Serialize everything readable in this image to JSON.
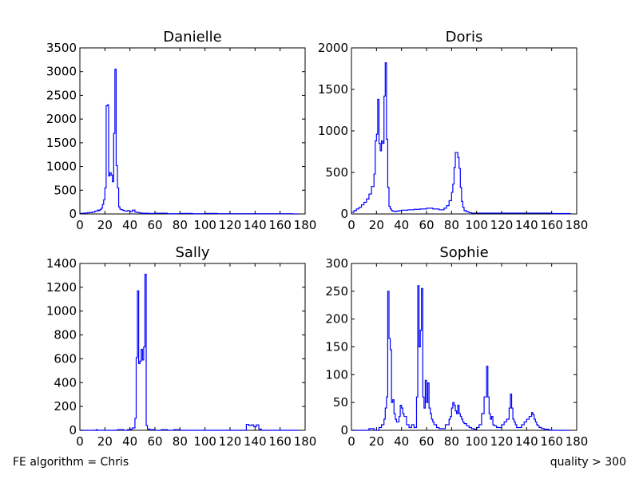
{
  "footer": {
    "left": "FE algorithm = Chris",
    "right": "quality > 300"
  },
  "chart_data": [
    {
      "type": "line",
      "title": "Danielle",
      "xlim": [
        0,
        180
      ],
      "ylim": [
        0,
        3500
      ],
      "xticks": [
        0,
        20,
        40,
        60,
        80,
        100,
        120,
        140,
        160,
        180
      ],
      "yticks": [
        0,
        500,
        1000,
        1500,
        2000,
        2500,
        3000,
        3500
      ],
      "step": true,
      "color": "#0000ff",
      "series": [
        {
          "x": [
            0,
            2,
            4,
            6,
            8,
            10,
            12,
            14,
            15,
            16,
            17,
            18,
            19,
            20,
            21,
            22,
            23,
            24,
            25,
            26,
            27,
            28,
            29,
            30,
            31,
            32,
            33,
            34,
            35,
            36,
            38,
            40,
            42,
            44,
            46,
            48,
            50,
            55,
            60,
            70,
            80,
            90,
            100,
            110,
            120,
            130,
            140,
            150,
            160,
            170,
            175
          ],
          "y": [
            10,
            15,
            20,
            25,
            30,
            40,
            60,
            80,
            70,
            90,
            120,
            200,
            300,
            550,
            2280,
            2300,
            800,
            870,
            820,
            680,
            1700,
            3050,
            1020,
            550,
            150,
            100,
            90,
            80,
            70,
            60,
            70,
            50,
            80,
            40,
            30,
            20,
            15,
            10,
            15,
            5,
            10,
            5,
            10,
            5,
            5,
            5,
            5,
            5,
            5,
            0,
            0
          ]
        }
      ]
    },
    {
      "type": "line",
      "title": "Doris",
      "xlim": [
        0,
        180
      ],
      "ylim": [
        0,
        2000
      ],
      "xticks": [
        0,
        20,
        40,
        60,
        80,
        100,
        120,
        140,
        160,
        180
      ],
      "yticks": [
        0,
        500,
        1000,
        1500,
        2000
      ],
      "step": true,
      "color": "#0000ff",
      "series": [
        {
          "x": [
            0,
            2,
            4,
            6,
            8,
            10,
            12,
            14,
            16,
            18,
            19,
            20,
            21,
            22,
            23,
            24,
            25,
            26,
            27,
            28,
            29,
            30,
            31,
            32,
            33,
            34,
            36,
            38,
            40,
            45,
            50,
            55,
            60,
            65,
            70,
            74,
            76,
            78,
            80,
            81,
            82,
            83,
            84,
            85,
            86,
            87,
            88,
            89,
            90,
            92,
            94,
            96,
            100,
            110,
            120,
            130,
            140,
            150,
            160,
            170,
            175
          ],
          "y": [
            20,
            40,
            60,
            80,
            110,
            140,
            180,
            240,
            330,
            480,
            880,
            960,
            1380,
            850,
            760,
            880,
            850,
            1420,
            1820,
            900,
            320,
            90,
            60,
            40,
            35,
            30,
            35,
            40,
            45,
            50,
            55,
            60,
            70,
            60,
            50,
            70,
            100,
            160,
            260,
            360,
            560,
            740,
            740,
            680,
            550,
            320,
            150,
            80,
            40,
            25,
            15,
            10,
            10,
            10,
            10,
            10,
            10,
            10,
            5,
            5,
            0
          ]
        }
      ]
    },
    {
      "type": "line",
      "title": "Sally",
      "xlim": [
        0,
        180
      ],
      "ylim": [
        0,
        1400
      ],
      "xticks": [
        0,
        20,
        40,
        60,
        80,
        100,
        120,
        140,
        160,
        180
      ],
      "yticks": [
        0,
        200,
        400,
        600,
        800,
        1000,
        1200,
        1400
      ],
      "step": true,
      "color": "#0000ff",
      "series": [
        {
          "x": [
            0,
            10,
            13,
            14,
            20,
            30,
            35,
            38,
            40,
            42,
            44,
            45,
            46,
            47,
            48,
            49,
            50,
            51,
            52,
            53,
            54,
            56,
            60,
            65,
            70,
            75,
            80,
            100,
            120,
            130,
            133,
            135,
            137,
            139,
            141,
            143,
            145,
            150,
            170,
            175
          ],
          "y": [
            0,
            0,
            5,
            0,
            0,
            5,
            0,
            5,
            10,
            20,
            100,
            610,
            1170,
            560,
            580,
            680,
            590,
            700,
            1310,
            40,
            10,
            5,
            0,
            5,
            0,
            5,
            0,
            0,
            0,
            0,
            50,
            40,
            45,
            30,
            45,
            10,
            0,
            0,
            0,
            0
          ]
        }
      ]
    },
    {
      "type": "line",
      "title": "Sophie",
      "xlim": [
        0,
        180
      ],
      "ylim": [
        0,
        300
      ],
      "xticks": [
        0,
        20,
        40,
        60,
        80,
        100,
        120,
        140,
        160,
        180
      ],
      "yticks": [
        0,
        50,
        100,
        150,
        200,
        250,
        300
      ],
      "step": true,
      "color": "#0000ff",
      "series": [
        {
          "x": [
            0,
            10,
            14,
            18,
            22,
            24,
            26,
            27,
            28,
            29,
            30,
            31,
            32,
            33,
            34,
            35,
            36,
            38,
            39,
            40,
            41,
            42,
            44,
            46,
            48,
            50,
            52,
            53,
            54,
            55,
            56,
            57,
            58,
            59,
            60,
            61,
            62,
            63,
            64,
            65,
            66,
            68,
            70,
            75,
            78,
            79,
            80,
            81,
            82,
            83,
            84,
            85,
            86,
            87,
            88,
            89,
            90,
            92,
            94,
            96,
            98,
            100,
            102,
            104,
            106,
            107,
            108,
            109,
            110,
            111,
            112,
            113,
            114,
            116,
            118,
            120,
            122,
            124,
            126,
            127,
            128,
            129,
            130,
            131,
            132,
            134,
            136,
            138,
            140,
            142,
            144,
            145,
            146,
            147,
            148,
            149,
            150,
            152,
            154,
            158,
            160,
            170,
            175
          ],
          "y": [
            0,
            0,
            3,
            0,
            5,
            10,
            20,
            40,
            60,
            250,
            165,
            145,
            50,
            55,
            30,
            20,
            15,
            25,
            45,
            40,
            30,
            25,
            10,
            5,
            10,
            5,
            60,
            260,
            150,
            180,
            255,
            60,
            40,
            90,
            50,
            85,
            40,
            30,
            20,
            15,
            10,
            5,
            3,
            10,
            20,
            25,
            40,
            50,
            45,
            35,
            30,
            45,
            30,
            25,
            20,
            15,
            12,
            8,
            5,
            3,
            2,
            5,
            10,
            30,
            60,
            60,
            115,
            60,
            30,
            20,
            25,
            10,
            8,
            5,
            5,
            10,
            15,
            20,
            40,
            65,
            40,
            20,
            15,
            10,
            5,
            5,
            10,
            15,
            20,
            25,
            32,
            28,
            20,
            15,
            10,
            8,
            5,
            3,
            2,
            0,
            0,
            0,
            0
          ]
        }
      ]
    }
  ]
}
